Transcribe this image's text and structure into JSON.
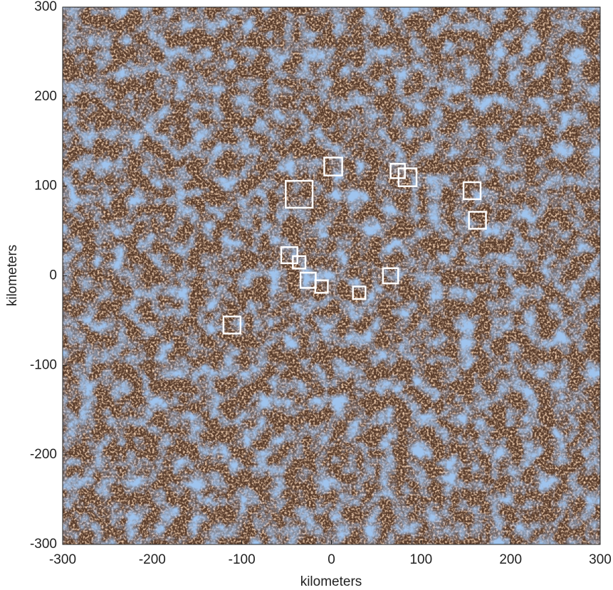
{
  "chart_data": {
    "type": "scatter",
    "xlabel": "kilometers",
    "ylabel": "kilometers",
    "xlim": [
      -300,
      300
    ],
    "ylim": [
      -300,
      300
    ],
    "xticks": [
      -300,
      -200,
      -100,
      0,
      100,
      200,
      300
    ],
    "yticks": [
      -300,
      -200,
      -100,
      0,
      100,
      200,
      300
    ],
    "series": [
      {
        "color": "#ffffff",
        "x": [
          2,
          -36,
          74,
          85,
          157,
          163,
          -47,
          -36,
          -26,
          -11,
          31,
          66,
          -111
        ],
        "values": [
          122,
          91,
          117,
          110,
          95,
          62,
          23,
          15,
          -5,
          -12,
          -19,
          0,
          -55
        ],
        "size": [
          20,
          30,
          16,
          20,
          19,
          19,
          18,
          14,
          17,
          14,
          14,
          17,
          19
        ]
      }
    ]
  }
}
